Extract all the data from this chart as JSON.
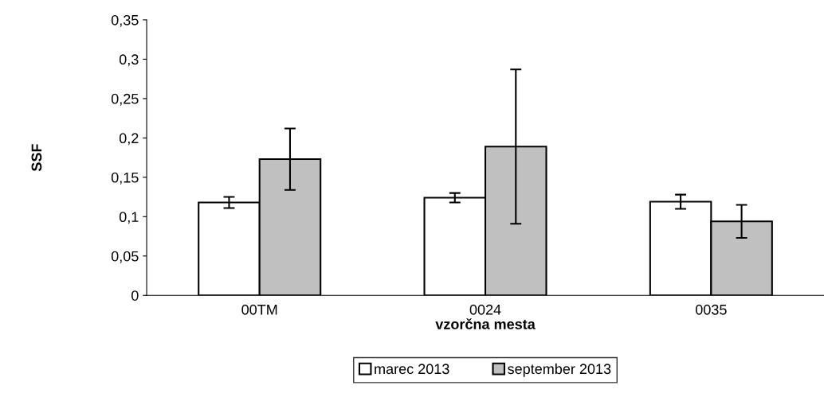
{
  "chart_data": {
    "type": "bar",
    "xlabel": "vzorčna mesta",
    "ylabel": "SSF",
    "categories": [
      "00TM",
      "0024",
      "0035"
    ],
    "series": [
      {
        "name": "marec 2013",
        "color": "#ffffff",
        "values": [
          0.118,
          0.124,
          0.119
        ],
        "errors": [
          0.007,
          0.006,
          0.009
        ]
      },
      {
        "name": "september 2013",
        "color": "#c0c0c0",
        "values": [
          0.173,
          0.189,
          0.094
        ],
        "errors": [
          0.039,
          0.098,
          0.021
        ]
      }
    ],
    "ylim": [
      0,
      0.35
    ],
    "yticks": [
      0,
      {
        "value": 0.05,
        "label": "0,05"
      },
      {
        "value": 0.1,
        "label": "0,1"
      },
      {
        "value": 0.15,
        "label": "0,15"
      },
      {
        "value": 0.2,
        "label": "0,2"
      },
      {
        "value": 0.25,
        "label": "0,25"
      },
      {
        "value": 0.3,
        "label": "0,3"
      },
      {
        "value": 0.35,
        "label": "0,35"
      }
    ],
    "grid": false,
    "legend": "bottom"
  }
}
